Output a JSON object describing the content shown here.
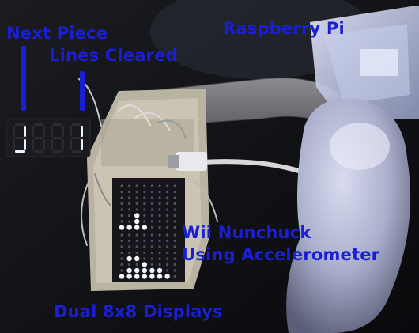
{
  "labels": {
    "next_piece": "Next Piece",
    "lines_cleared": "Lines Cleared",
    "raspberry_pi": "Raspberry Pi",
    "nunchuck_line1": "Wii Nunchuck",
    "nunchuck_line2": "Using Accelerometer",
    "displays": "Dual 8x8 Displays"
  },
  "seven_segment": {
    "digits": [
      "J",
      "",
      "",
      "1"
    ],
    "lit_color": "#e8f4ff"
  },
  "led_matrix": {
    "rows": 8,
    "cols": 16,
    "lit_cells": [
      [
        4,
        9
      ],
      [
        4,
        10
      ],
      [
        5,
        2
      ],
      [
        5,
        11
      ],
      [
        6,
        2
      ],
      [
        6,
        9
      ],
      [
        6,
        10
      ],
      [
        6,
        11
      ],
      [
        6,
        12
      ],
      [
        6,
        13
      ],
      [
        7,
        0
      ],
      [
        7,
        1
      ],
      [
        7,
        2
      ],
      [
        7,
        3
      ],
      [
        7,
        8
      ],
      [
        7,
        9
      ],
      [
        7,
        10
      ],
      [
        7,
        11
      ],
      [
        7,
        12
      ],
      [
        7,
        13
      ],
      [
        7,
        14
      ]
    ],
    "lit_color": "#f4f8ff",
    "dim_color": "#7c86b0"
  },
  "colors": {
    "annotation": "#1a1fd6",
    "background": "#0b0b10"
  }
}
